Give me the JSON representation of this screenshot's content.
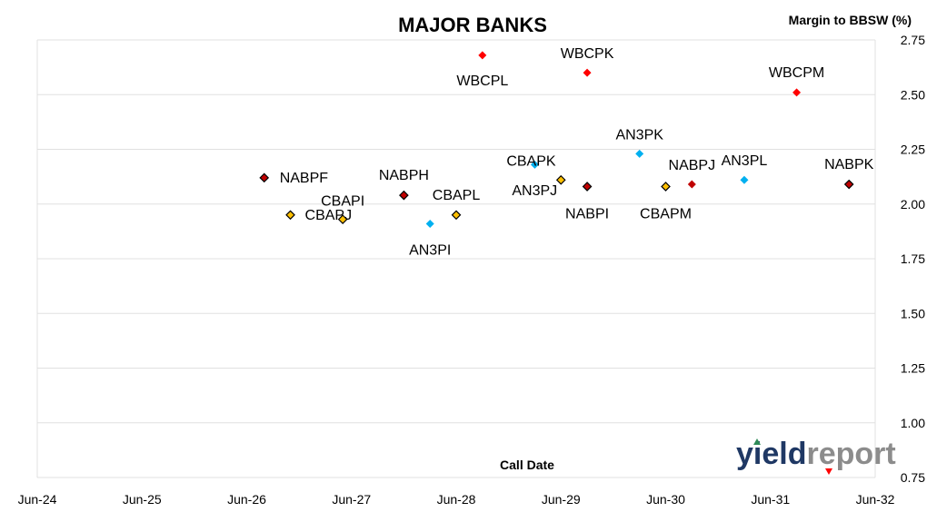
{
  "chart_data": {
    "type": "scatter",
    "title": "MAJOR BANKS",
    "xlabel": "Call Date",
    "ylabel": "Margin to BBSW (%)",
    "x_ticks": [
      "Jun-24",
      "Jun-25",
      "Jun-26",
      "Jun-27",
      "Jun-28",
      "Jun-29",
      "Jun-30",
      "Jun-31",
      "Jun-32"
    ],
    "xlim": [
      "2024-06",
      "2032-06"
    ],
    "y_ticks": [
      "0.75",
      "1.00",
      "1.25",
      "1.50",
      "1.75",
      "2.00",
      "2.25",
      "2.50",
      "2.75"
    ],
    "ylim": [
      0.75,
      2.75
    ],
    "grid": true,
    "y_axis_position": "right",
    "colors": {
      "WBC": "#ff0000",
      "NAB": "#c00000",
      "CBA": "#ffc000",
      "ANZ": "#00b0f0",
      "marker_border": "#000000",
      "grid": "#e0e0e0"
    },
    "points": [
      {
        "label": "NABPF",
        "x": "2026-08",
        "y": 2.12,
        "color": "#c00000",
        "border": true
      },
      {
        "label": "CBAPJ",
        "x": "2026-11",
        "y": 1.95,
        "color": "#ffc000",
        "border": true
      },
      {
        "label": "CBAPI",
        "x": "2027-05",
        "y": 1.93,
        "color": "#ffc000",
        "border": true
      },
      {
        "label": "NABPH",
        "x": "2027-12",
        "y": 2.04,
        "color": "#c00000",
        "border": true
      },
      {
        "label": "AN3PI",
        "x": "2028-03",
        "y": 1.91,
        "color": "#00b0f0",
        "border": false
      },
      {
        "label": "CBAPL",
        "x": "2028-06",
        "y": 1.95,
        "color": "#ffc000",
        "border": true
      },
      {
        "label": "WBCPL",
        "x": "2028-09",
        "y": 2.68,
        "color": "#ff0000",
        "border": false
      },
      {
        "label": "CBAPK",
        "x": "2029-03",
        "y": 2.18,
        "color": "#00b0f0",
        "border": false
      },
      {
        "label": "AN3PJ",
        "x": "2029-06",
        "y": 2.11,
        "color": "#ffc000",
        "border": true
      },
      {
        "label": "WBCPK",
        "x": "2029-09",
        "y": 2.6,
        "color": "#ff0000",
        "border": false
      },
      {
        "label": "NABPI",
        "x": "2029-09",
        "y": 2.08,
        "color": "#c00000",
        "border": true
      },
      {
        "label": "AN3PK",
        "x": "2030-03",
        "y": 2.23,
        "color": "#00b0f0",
        "border": false
      },
      {
        "label": "CBAPM",
        "x": "2030-06",
        "y": 2.08,
        "color": "#ffc000",
        "border": true
      },
      {
        "label": "NABPJ",
        "x": "2030-09",
        "y": 2.09,
        "color": "#c00000",
        "border": false
      },
      {
        "label": "AN3PL",
        "x": "2031-03",
        "y": 2.11,
        "color": "#00b0f0",
        "border": false
      },
      {
        "label": "WBCPM",
        "x": "2031-09",
        "y": 2.51,
        "color": "#ff0000",
        "border": false
      },
      {
        "label": "NABPK",
        "x": "2032-03",
        "y": 2.09,
        "color": "#c00000",
        "border": true
      }
    ]
  },
  "logo": {
    "text_a": "yield",
    "text_b": "report",
    "color_a": "#1f3864",
    "color_b": "#8c8c8c",
    "arrow_up_color": "#2e8b57",
    "arrow_down_color": "#ff0000"
  }
}
